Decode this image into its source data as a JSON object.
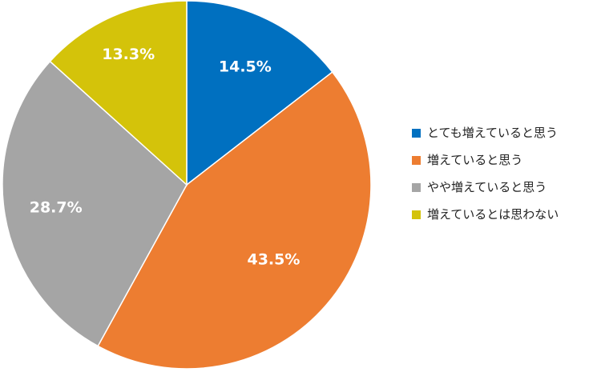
{
  "chart_data": {
    "type": "pie",
    "title": "",
    "categories": [
      "とても増えていると思う",
      "増えていると思う",
      "やや増えていると思う",
      "増えているとは思わない"
    ],
    "values": [
      14.5,
      43.5,
      28.7,
      13.3
    ],
    "value_labels": [
      "14.5%",
      "43.5%",
      "28.7%",
      "13.3%"
    ],
    "unit": "%",
    "colors": [
      "#0070C0",
      "#ED7D31",
      "#A5A5A5",
      "#D4C30A"
    ],
    "start_angle": "12 o'clock",
    "direction": "clockwise",
    "legend_position": "right"
  }
}
